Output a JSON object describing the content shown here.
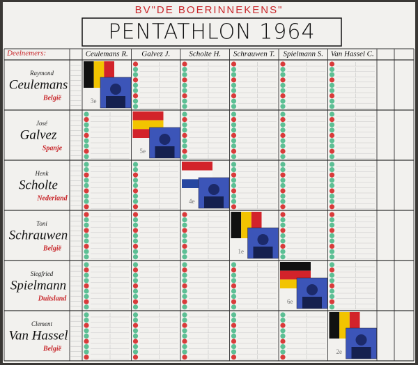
{
  "header": {
    "club": "BV\"DE BOERINNEKENS\"",
    "title": "PENTATHLON 1964"
  },
  "table": {
    "row_header": "Deelnemers:",
    "columns": [
      "Ceulemans R.",
      "Galvez J.",
      "Scholte H.",
      "Schrauwen T.",
      "Spielmann S.",
      "Van Hassel C."
    ],
    "rows": [
      {
        "first_name": "Raymond",
        "last_name": "Ceulemans",
        "country": "België",
        "rank": "3e"
      },
      {
        "first_name": "José",
        "last_name": "Galvez",
        "country": "Spanje",
        "rank": "5e"
      },
      {
        "first_name": "Henk",
        "last_name": "Scholte",
        "country": "Nederland",
        "rank": "4e"
      },
      {
        "first_name": "Toni",
        "last_name": "Schrauwen",
        "country": "België",
        "rank": "1e"
      },
      {
        "first_name": "Siegfried",
        "last_name": "Spielmann",
        "country": "Duitsland",
        "rank": "6e"
      },
      {
        "first_name": "Clement",
        "last_name": "Van Hassel",
        "country": "België",
        "rank": "2e"
      }
    ]
  }
}
